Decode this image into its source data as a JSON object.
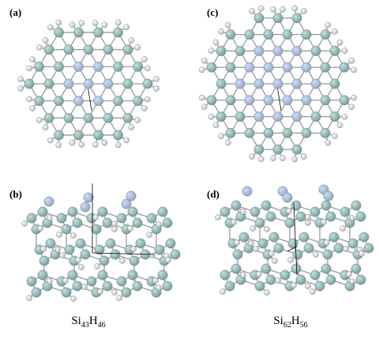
{
  "figure": {
    "panels": [
      {
        "id": "a",
        "label": "(a)",
        "view": "top",
        "cluster": "Si43H46"
      },
      {
        "id": "b",
        "label": "(b)",
        "view": "side",
        "cluster": "Si43H46"
      },
      {
        "id": "c",
        "label": "(c)",
        "view": "top",
        "cluster": "Si62H56"
      },
      {
        "id": "d",
        "label": "(d)",
        "view": "side",
        "cluster": "Si62H56"
      }
    ],
    "captions": [
      {
        "base1": "Si",
        "sub1": "43",
        "base2": "H",
        "sub2": "46"
      },
      {
        "base1": "Si",
        "sub1": "62",
        "base2": "H",
        "sub2": "56"
      }
    ],
    "colors": {
      "silicon": "#6f9b9b",
      "silicon_center": "#8ea4c8",
      "hydrogen": "#e8e8e8",
      "bond": "#9a9a9a",
      "axis": "#000000"
    }
  }
}
